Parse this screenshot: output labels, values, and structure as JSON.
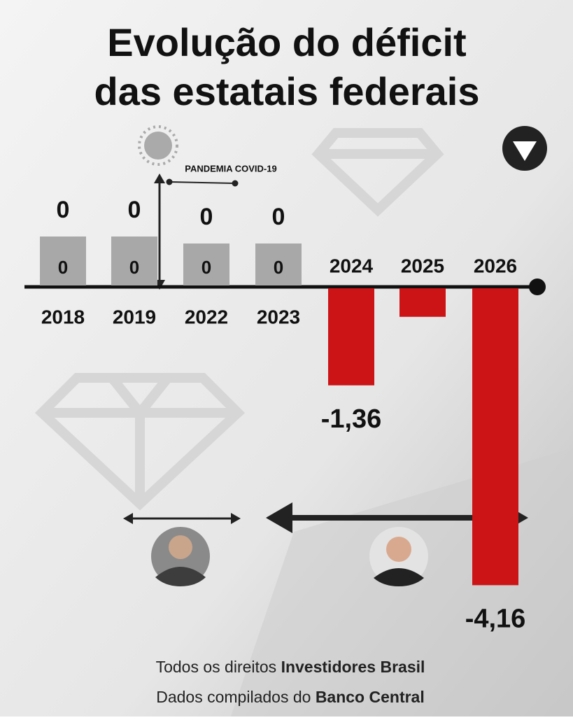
{
  "chart_data": {
    "type": "bar",
    "title": "Evolução do déficit",
    "subtitle": "das estatais federais",
    "categories": [
      "2018",
      "2019",
      "2022",
      "2023",
      "2024",
      "2025",
      "2026"
    ],
    "values": [
      0,
      0,
      0,
      0,
      -1.36,
      -0.4,
      -4.16
    ],
    "value_labels": [
      "0",
      "0",
      "0",
      "0",
      "-1,36",
      null,
      "-4,16"
    ],
    "color": "#cc1417",
    "zero_color": "#a8a8a8",
    "annotation": "PANDEMIA COVID-19",
    "footer": [
      [
        "Todos os direitos ",
        "Investidores Brasil"
      ],
      [
        "Dados compilados do ",
        "Banco Central"
      ]
    ]
  }
}
